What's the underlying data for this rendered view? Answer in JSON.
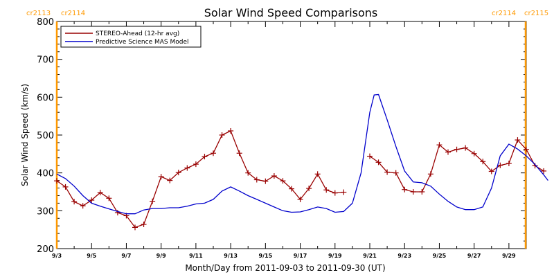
{
  "chart_data": {
    "type": "line",
    "title": "Solar Wind Speed Comparisons",
    "xlabel": "Month/Day from 2011-09-03 to 2011-09-30 (UT)",
    "ylabel": "Solar Wind Speed (km/s)",
    "xlim": [
      "2011-09-03",
      "2011-09-30"
    ],
    "ylim": [
      200,
      800
    ],
    "x_ticks": [
      "9/3",
      "9/5",
      "9/7",
      "9/9",
      "9/11",
      "9/13",
      "9/15",
      "9/17",
      "9/19",
      "9/21",
      "9/23",
      "9/25",
      "9/27",
      "9/29"
    ],
    "y_ticks": [
      200,
      300,
      400,
      500,
      600,
      700,
      800
    ],
    "grid": false,
    "legend_position": "top-left",
    "carrington_markers": [
      {
        "date": "2011-09-03",
        "left_label": "cr2113",
        "right_label": "cr2114",
        "color": "#ff9900"
      },
      {
        "date": "2011-09-29.96",
        "left_label": "cr2114",
        "right_label": "cr2115",
        "color": "#ff9900"
      }
    ],
    "series": [
      {
        "name": "STEREO-Ahead (12-hr avg)",
        "color": "#990000",
        "marker": "plus",
        "segments": [
          [
            [
              "2011-09-03 00:00",
              379
            ],
            [
              "2011-09-03 12:00",
              363
            ],
            [
              "2011-09-04 00:00",
              324
            ],
            [
              "2011-09-04 12:00",
              313
            ],
            [
              "2011-09-05 00:00",
              328
            ],
            [
              "2011-09-05 12:00",
              348
            ],
            [
              "2011-09-06 00:00",
              333
            ],
            [
              "2011-09-06 12:00",
              295
            ],
            [
              "2011-09-07 00:00",
              287
            ],
            [
              "2011-09-07 12:00",
              256
            ],
            [
              "2011-09-08 00:00",
              264
            ],
            [
              "2011-09-08 12:00",
              325
            ],
            [
              "2011-09-09 00:00",
              390
            ],
            [
              "2011-09-09 12:00",
              380
            ],
            [
              "2011-09-10 00:00",
              401
            ],
            [
              "2011-09-10 12:00",
              413
            ],
            [
              "2011-09-11 00:00",
              423
            ],
            [
              "2011-09-11 12:00",
              443
            ],
            [
              "2011-09-12 00:00",
              452
            ],
            [
              "2011-09-12 12:00",
              500
            ],
            [
              "2011-09-13 00:00",
              511
            ],
            [
              "2011-09-13 12:00",
              452
            ],
            [
              "2011-09-14 00:00",
              400
            ],
            [
              "2011-09-14 12:00",
              382
            ],
            [
              "2011-09-15 00:00",
              378
            ],
            [
              "2011-09-15 12:00",
              392
            ],
            [
              "2011-09-16 00:00",
              379
            ],
            [
              "2011-09-16 12:00",
              358
            ],
            [
              "2011-09-17 00:00",
              330
            ],
            [
              "2011-09-17 12:00",
              359
            ],
            [
              "2011-09-18 00:00",
              397
            ],
            [
              "2011-09-18 12:00",
              355
            ],
            [
              "2011-09-19 00:00",
              347
            ],
            [
              "2011-09-19 12:00",
              349
            ]
          ],
          [
            [
              "2011-09-21 00:00",
              444
            ],
            [
              "2011-09-21 12:00",
              428
            ],
            [
              "2011-09-22 00:00",
              402
            ],
            [
              "2011-09-22 12:00",
              400
            ],
            [
              "2011-09-23 00:00",
              356
            ],
            [
              "2011-09-23 12:00",
              350
            ],
            [
              "2011-09-24 00:00",
              350
            ],
            [
              "2011-09-24 12:00",
              397
            ],
            [
              "2011-09-25 00:00",
              474
            ],
            [
              "2011-09-25 12:00",
              455
            ],
            [
              "2011-09-26 00:00",
              462
            ],
            [
              "2011-09-26 12:00",
              466
            ],
            [
              "2011-09-27 00:00",
              451
            ],
            [
              "2011-09-27 12:00",
              430
            ],
            [
              "2011-09-28 00:00",
              404
            ],
            [
              "2011-09-28 12:00",
              420
            ],
            [
              "2011-09-29 00:00",
              425
            ],
            [
              "2011-09-29 12:00",
              487
            ],
            [
              "2011-09-30 00:00",
              462
            ],
            [
              "2011-09-30 12:00",
              419
            ],
            [
              "2011-09-31 00:00",
              405
            ]
          ]
        ]
      },
      {
        "name": "Predictive Science MAS Model",
        "color": "#0000cc",
        "marker": "none",
        "segments": [
          [
            [
              "2011-09-03 00:00",
              397
            ],
            [
              "2011-09-03 12:00",
              385
            ],
            [
              "2011-09-04 00:00",
              365
            ],
            [
              "2011-09-04 12:00",
              340
            ],
            [
              "2011-09-05 00:00",
              320
            ],
            [
              "2011-09-05 12:00",
              312
            ],
            [
              "2011-09-06 00:00",
              305
            ],
            [
              "2011-09-06 12:00",
              298
            ],
            [
              "2011-09-07 00:00",
              292
            ],
            [
              "2011-09-07 12:00",
              292
            ],
            [
              "2011-09-08 00:00",
              302
            ],
            [
              "2011-09-08 12:00",
              306
            ],
            [
              "2011-09-09 00:00",
              306
            ],
            [
              "2011-09-09 12:00",
              308
            ],
            [
              "2011-09-10 00:00",
              308
            ],
            [
              "2011-09-10 12:00",
              312
            ],
            [
              "2011-09-11 00:00",
              318
            ],
            [
              "2011-09-11 12:00",
              320
            ],
            [
              "2011-09-12 00:00",
              330
            ],
            [
              "2011-09-12 12:00",
              352
            ],
            [
              "2011-09-13 00:00",
              363
            ],
            [
              "2011-09-13 12:00",
              352
            ],
            [
              "2011-09-14 00:00",
              340
            ],
            [
              "2011-09-14 12:00",
              330
            ],
            [
              "2011-09-15 00:00",
              320
            ],
            [
              "2011-09-15 12:00",
              310
            ],
            [
              "2011-09-16 00:00",
              300
            ],
            [
              "2011-09-16 12:00",
              296
            ],
            [
              "2011-09-17 00:00",
              297
            ],
            [
              "2011-09-17 12:00",
              303
            ],
            [
              "2011-09-18 00:00",
              310
            ],
            [
              "2011-09-18 12:00",
              306
            ],
            [
              "2011-09-19 00:00",
              296
            ],
            [
              "2011-09-19 12:00",
              298
            ],
            [
              "2011-09-20 00:00",
              320
            ],
            [
              "2011-09-20 12:00",
              400
            ],
            [
              "2011-09-21 00:00",
              560
            ],
            [
              "2011-09-21 06:00",
              606
            ],
            [
              "2011-09-21 12:00",
              607
            ],
            [
              "2011-09-22 00:00",
              540
            ],
            [
              "2011-09-22 12:00",
              470
            ],
            [
              "2011-09-23 00:00",
              405
            ],
            [
              "2011-09-23 12:00",
              376
            ],
            [
              "2011-09-24 00:00",
              374
            ],
            [
              "2011-09-24 12:00",
              365
            ],
            [
              "2011-09-25 00:00",
              344
            ],
            [
              "2011-09-25 12:00",
              325
            ],
            [
              "2011-09-26 00:00",
              310
            ],
            [
              "2011-09-26 12:00",
              303
            ],
            [
              "2011-09-27 00:00",
              303
            ],
            [
              "2011-09-27 12:00",
              310
            ],
            [
              "2011-09-28 00:00",
              360
            ],
            [
              "2011-09-28 12:00",
              445
            ],
            [
              "2011-09-29 00:00",
              476
            ],
            [
              "2011-09-29 12:00",
              463
            ],
            [
              "2011-09-30 00:00",
              445
            ],
            [
              "2011-09-30 12:00",
              422
            ],
            [
              "2011-09-31 00:00",
              395
            ],
            [
              "2011-09-31 06:00",
              380
            ]
          ]
        ]
      }
    ]
  }
}
